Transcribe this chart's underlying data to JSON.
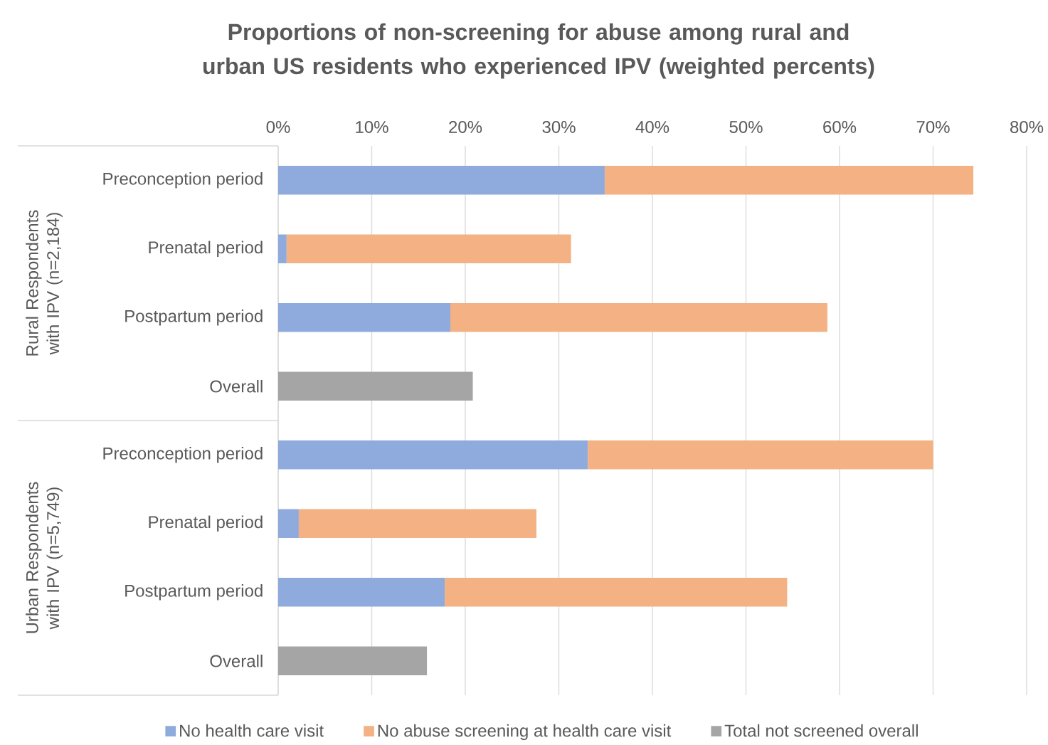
{
  "chart_data": {
    "type": "bar",
    "orientation": "horizontal",
    "stacked": true,
    "title": "Proportions of non-screening for abuse among rural and urban US residents who experienced IPV (weighted percents)",
    "categories": [
      "Preconception period",
      "Prenatal period",
      "Postpartum period",
      "Overall",
      "Preconception period",
      "Prenatal period",
      "Postpartum period",
      "Overall"
    ],
    "series": [
      {
        "name": "No health care visit",
        "color": "#8faadc",
        "values": [
          34.9,
          0.9,
          18.4,
          null,
          33.1,
          2.2,
          17.8,
          null
        ]
      },
      {
        "name": "No abuse screening at health care visit",
        "color": "#f4b183",
        "values": [
          39.4,
          30.4,
          40.3,
          null,
          36.9,
          25.4,
          36.6,
          null
        ]
      },
      {
        "name": "Total not screened overall",
        "color": "#a5a5a5",
        "values": [
          null,
          null,
          null,
          20.8,
          null,
          null,
          null,
          15.9
        ]
      }
    ],
    "xlim": [
      0,
      80
    ],
    "xticks": [
      {
        "value": 0,
        "label": "0%"
      },
      {
        "value": 10,
        "label": "10%"
      },
      {
        "value": 20,
        "label": "20%"
      },
      {
        "value": 30,
        "label": "30%"
      },
      {
        "value": 40,
        "label": "40%"
      },
      {
        "value": 50,
        "label": "50%"
      },
      {
        "value": 60,
        "label": "60%"
      },
      {
        "value": 70,
        "label": "70%"
      },
      {
        "value": 80,
        "label": "80%"
      }
    ],
    "grid": "x",
    "legend": "bottom",
    "annotations": [
      "Rural Respondents with IPV (n=2,184)",
      "Urban Respondents with IPV (n=5,749)"
    ]
  }
}
